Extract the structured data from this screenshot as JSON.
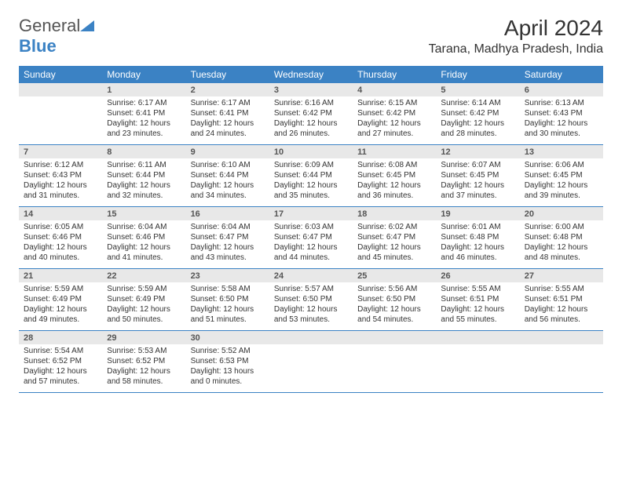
{
  "logo": {
    "text1": "General",
    "text2": "Blue"
  },
  "title": {
    "month": "April 2024",
    "location": "Tarana, Madhya Pradesh, India"
  },
  "weekdays": [
    "Sunday",
    "Monday",
    "Tuesday",
    "Wednesday",
    "Thursday",
    "Friday",
    "Saturday"
  ],
  "colors": {
    "header_bg": "#3b82c4",
    "daynum_bg": "#e8e8e8",
    "text": "#333333",
    "logo_gray": "#555555"
  },
  "weeks": [
    [
      {
        "n": "",
        "sunrise": "",
        "sunset": "",
        "daylight": ""
      },
      {
        "n": "1",
        "sunrise": "Sunrise: 6:17 AM",
        "sunset": "Sunset: 6:41 PM",
        "daylight": "Daylight: 12 hours and 23 minutes."
      },
      {
        "n": "2",
        "sunrise": "Sunrise: 6:17 AM",
        "sunset": "Sunset: 6:41 PM",
        "daylight": "Daylight: 12 hours and 24 minutes."
      },
      {
        "n": "3",
        "sunrise": "Sunrise: 6:16 AM",
        "sunset": "Sunset: 6:42 PM",
        "daylight": "Daylight: 12 hours and 26 minutes."
      },
      {
        "n": "4",
        "sunrise": "Sunrise: 6:15 AM",
        "sunset": "Sunset: 6:42 PM",
        "daylight": "Daylight: 12 hours and 27 minutes."
      },
      {
        "n": "5",
        "sunrise": "Sunrise: 6:14 AM",
        "sunset": "Sunset: 6:42 PM",
        "daylight": "Daylight: 12 hours and 28 minutes."
      },
      {
        "n": "6",
        "sunrise": "Sunrise: 6:13 AM",
        "sunset": "Sunset: 6:43 PM",
        "daylight": "Daylight: 12 hours and 30 minutes."
      }
    ],
    [
      {
        "n": "7",
        "sunrise": "Sunrise: 6:12 AM",
        "sunset": "Sunset: 6:43 PM",
        "daylight": "Daylight: 12 hours and 31 minutes."
      },
      {
        "n": "8",
        "sunrise": "Sunrise: 6:11 AM",
        "sunset": "Sunset: 6:44 PM",
        "daylight": "Daylight: 12 hours and 32 minutes."
      },
      {
        "n": "9",
        "sunrise": "Sunrise: 6:10 AM",
        "sunset": "Sunset: 6:44 PM",
        "daylight": "Daylight: 12 hours and 34 minutes."
      },
      {
        "n": "10",
        "sunrise": "Sunrise: 6:09 AM",
        "sunset": "Sunset: 6:44 PM",
        "daylight": "Daylight: 12 hours and 35 minutes."
      },
      {
        "n": "11",
        "sunrise": "Sunrise: 6:08 AM",
        "sunset": "Sunset: 6:45 PM",
        "daylight": "Daylight: 12 hours and 36 minutes."
      },
      {
        "n": "12",
        "sunrise": "Sunrise: 6:07 AM",
        "sunset": "Sunset: 6:45 PM",
        "daylight": "Daylight: 12 hours and 37 minutes."
      },
      {
        "n": "13",
        "sunrise": "Sunrise: 6:06 AM",
        "sunset": "Sunset: 6:45 PM",
        "daylight": "Daylight: 12 hours and 39 minutes."
      }
    ],
    [
      {
        "n": "14",
        "sunrise": "Sunrise: 6:05 AM",
        "sunset": "Sunset: 6:46 PM",
        "daylight": "Daylight: 12 hours and 40 minutes."
      },
      {
        "n": "15",
        "sunrise": "Sunrise: 6:04 AM",
        "sunset": "Sunset: 6:46 PM",
        "daylight": "Daylight: 12 hours and 41 minutes."
      },
      {
        "n": "16",
        "sunrise": "Sunrise: 6:04 AM",
        "sunset": "Sunset: 6:47 PM",
        "daylight": "Daylight: 12 hours and 43 minutes."
      },
      {
        "n": "17",
        "sunrise": "Sunrise: 6:03 AM",
        "sunset": "Sunset: 6:47 PM",
        "daylight": "Daylight: 12 hours and 44 minutes."
      },
      {
        "n": "18",
        "sunrise": "Sunrise: 6:02 AM",
        "sunset": "Sunset: 6:47 PM",
        "daylight": "Daylight: 12 hours and 45 minutes."
      },
      {
        "n": "19",
        "sunrise": "Sunrise: 6:01 AM",
        "sunset": "Sunset: 6:48 PM",
        "daylight": "Daylight: 12 hours and 46 minutes."
      },
      {
        "n": "20",
        "sunrise": "Sunrise: 6:00 AM",
        "sunset": "Sunset: 6:48 PM",
        "daylight": "Daylight: 12 hours and 48 minutes."
      }
    ],
    [
      {
        "n": "21",
        "sunrise": "Sunrise: 5:59 AM",
        "sunset": "Sunset: 6:49 PM",
        "daylight": "Daylight: 12 hours and 49 minutes."
      },
      {
        "n": "22",
        "sunrise": "Sunrise: 5:59 AM",
        "sunset": "Sunset: 6:49 PM",
        "daylight": "Daylight: 12 hours and 50 minutes."
      },
      {
        "n": "23",
        "sunrise": "Sunrise: 5:58 AM",
        "sunset": "Sunset: 6:50 PM",
        "daylight": "Daylight: 12 hours and 51 minutes."
      },
      {
        "n": "24",
        "sunrise": "Sunrise: 5:57 AM",
        "sunset": "Sunset: 6:50 PM",
        "daylight": "Daylight: 12 hours and 53 minutes."
      },
      {
        "n": "25",
        "sunrise": "Sunrise: 5:56 AM",
        "sunset": "Sunset: 6:50 PM",
        "daylight": "Daylight: 12 hours and 54 minutes."
      },
      {
        "n": "26",
        "sunrise": "Sunrise: 5:55 AM",
        "sunset": "Sunset: 6:51 PM",
        "daylight": "Daylight: 12 hours and 55 minutes."
      },
      {
        "n": "27",
        "sunrise": "Sunrise: 5:55 AM",
        "sunset": "Sunset: 6:51 PM",
        "daylight": "Daylight: 12 hours and 56 minutes."
      }
    ],
    [
      {
        "n": "28",
        "sunrise": "Sunrise: 5:54 AM",
        "sunset": "Sunset: 6:52 PM",
        "daylight": "Daylight: 12 hours and 57 minutes."
      },
      {
        "n": "29",
        "sunrise": "Sunrise: 5:53 AM",
        "sunset": "Sunset: 6:52 PM",
        "daylight": "Daylight: 12 hours and 58 minutes."
      },
      {
        "n": "30",
        "sunrise": "Sunrise: 5:52 AM",
        "sunset": "Sunset: 6:53 PM",
        "daylight": "Daylight: 13 hours and 0 minutes."
      },
      {
        "n": "",
        "sunrise": "",
        "sunset": "",
        "daylight": ""
      },
      {
        "n": "",
        "sunrise": "",
        "sunset": "",
        "daylight": ""
      },
      {
        "n": "",
        "sunrise": "",
        "sunset": "",
        "daylight": ""
      },
      {
        "n": "",
        "sunrise": "",
        "sunset": "",
        "daylight": ""
      }
    ]
  ]
}
